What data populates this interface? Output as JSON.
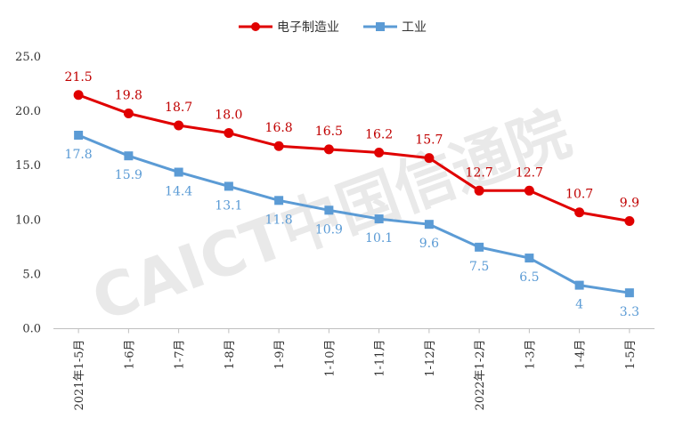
{
  "watermark": "CAICT中国信通院",
  "chart_data": {
    "type": "line",
    "categories": [
      "2021年1-5月",
      "1-6月",
      "1-7月",
      "1-8月",
      "1-9月",
      "1-10月",
      "1-11月",
      "1-12月",
      "2022年1-2月",
      "1-3月",
      "1-4月",
      "1-5月"
    ],
    "series": [
      {
        "name": "电子制造业",
        "color": "#E00000",
        "label_color": "#C00000",
        "marker": "circle",
        "values": [
          21.5,
          19.8,
          18.7,
          18.0,
          16.8,
          16.5,
          16.2,
          15.7,
          12.7,
          12.7,
          10.7,
          9.9
        ],
        "labels": [
          "21.5",
          "19.8",
          "18.7",
          "18.0",
          "16.8",
          "16.5",
          "16.2",
          "15.7",
          "12.7",
          "12.7",
          "10.7",
          "9.9"
        ]
      },
      {
        "name": "工业",
        "color": "#5B9BD5",
        "label_color": "#5B9BD5",
        "marker": "square",
        "values": [
          17.8,
          15.9,
          14.4,
          13.1,
          11.8,
          10.9,
          10.1,
          9.6,
          7.5,
          6.5,
          4,
          3.3
        ],
        "labels": [
          "17.8",
          "15.9",
          "14.4",
          "13.1",
          "11.8",
          "10.9",
          "10.1",
          "9.6",
          "7.5",
          "6.5",
          "4",
          "3.3"
        ]
      }
    ],
    "yticks": [
      "0.0",
      "5.0",
      "10.0",
      "15.0",
      "20.0",
      "25.0"
    ],
    "ylim": [
      0,
      25
    ],
    "grid": false,
    "legend_position": "top-center"
  }
}
